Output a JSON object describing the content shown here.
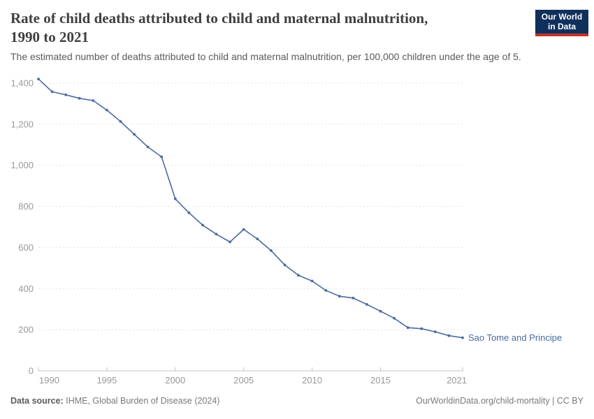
{
  "header": {
    "title_line1": "Rate of child deaths attributed to child and maternal malnutrition,",
    "title_line2": "1990 to 2021",
    "subtitle": "The estimated number of deaths attributed to child and maternal malnutrition, per 100,000 children under the age of 5.",
    "logo_line1": "Our World",
    "logo_line2": "in Data"
  },
  "colors": {
    "line": "#4a6b9e",
    "entity_label": "#4a6b9e",
    "gridline": "#e2e2e2",
    "axis": "#c4c4c4",
    "tick_label": "#999999",
    "logo_bg": "#10305c",
    "logo_stripe": "#c0342b"
  },
  "chart_data": {
    "type": "line",
    "title": "Rate of child deaths attributed to child and maternal malnutrition, 1990 to 2021",
    "entity_label": "Sao Tome and Principe",
    "x": [
      1990,
      1991,
      1992,
      1993,
      1994,
      1995,
      1996,
      1997,
      1998,
      1999,
      2000,
      2001,
      2002,
      2003,
      2004,
      2005,
      2006,
      2007,
      2008,
      2009,
      2010,
      2011,
      2012,
      2013,
      2014,
      2015,
      2016,
      2017,
      2018,
      2019,
      2020,
      2021
    ],
    "values": [
      1420,
      1358,
      1343,
      1326,
      1315,
      1269,
      1213,
      1151,
      1089,
      1041,
      837,
      769,
      709,
      665,
      627,
      688,
      642,
      585,
      515,
      465,
      437,
      391,
      363,
      354,
      323,
      290,
      256,
      210,
      205,
      190,
      171,
      161
    ],
    "xlabel": "",
    "ylabel": "",
    "xlim": [
      1990,
      2021
    ],
    "ylim": [
      0,
      1400
    ],
    "yticks": [
      0,
      200,
      400,
      600,
      800,
      1000,
      1200,
      1400
    ],
    "xticks": [
      1990,
      1995,
      2000,
      2005,
      2010,
      2015,
      2021
    ],
    "grid": "horizontal-dashed",
    "legend_position": "end-of-line"
  },
  "footer": {
    "source_label": "Data source:",
    "source_value": "IHME, Global Burden of Disease (2024)",
    "license": "OurWorldinData.org/child-mortality | CC BY"
  }
}
